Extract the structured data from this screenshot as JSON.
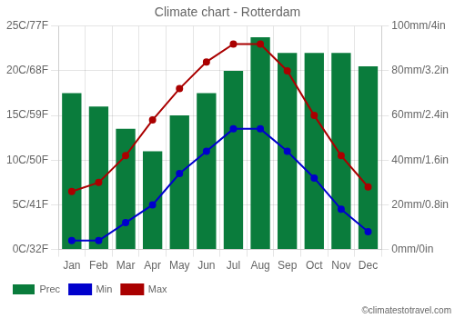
{
  "chart_data": {
    "type": "bar",
    "title": "Climate chart - Rotterdam",
    "annotations": [
      "©climatestotravel.com"
    ],
    "categories": [
      "Jan",
      "Feb",
      "Mar",
      "Apr",
      "May",
      "Jun",
      "Jul",
      "Aug",
      "Sep",
      "Oct",
      "Nov",
      "Dec"
    ],
    "series": [
      {
        "name": "Prec",
        "type": "bar",
        "axis": "y2",
        "color": "#0a7c3c",
        "values": [
          70,
          64,
          54,
          44,
          60,
          70,
          80,
          95,
          88,
          88,
          88,
          82
        ]
      },
      {
        "name": "Min",
        "type": "line",
        "color": "#0000cc",
        "marker": "circle",
        "values": [
          1,
          1,
          3,
          5,
          8.5,
          11,
          13.5,
          13.5,
          11,
          8,
          4.5,
          2
        ]
      },
      {
        "name": "Max",
        "type": "line",
        "color": "#aa0000",
        "marker": "circle",
        "values": [
          6.5,
          7.5,
          10.5,
          14.5,
          18,
          21,
          23,
          23,
          20,
          15,
          10.5,
          7
        ]
      }
    ],
    "ylim": [
      0,
      25
    ],
    "yticks": [
      {
        "value": 0,
        "label": "0C/32F"
      },
      {
        "value": 5,
        "label": "5C/41F"
      },
      {
        "value": 10,
        "label": "10C/50F"
      },
      {
        "value": 15,
        "label": "15C/59F"
      },
      {
        "value": 20,
        "label": "20C/68F"
      },
      {
        "value": 25,
        "label": "25C/77F"
      }
    ],
    "y2lim": [
      0,
      100
    ],
    "y2ticks": [
      {
        "value": 0,
        "label": "0mm/0in"
      },
      {
        "value": 20,
        "label": "20mm/0.8in"
      },
      {
        "value": 40,
        "label": "40mm/1.6in"
      },
      {
        "value": 60,
        "label": "60mm/2.4in"
      },
      {
        "value": 80,
        "label": "80mm/3.2in"
      },
      {
        "value": 100,
        "label": "100mm/4in"
      }
    ],
    "grid": true,
    "legend": "bottom left"
  }
}
